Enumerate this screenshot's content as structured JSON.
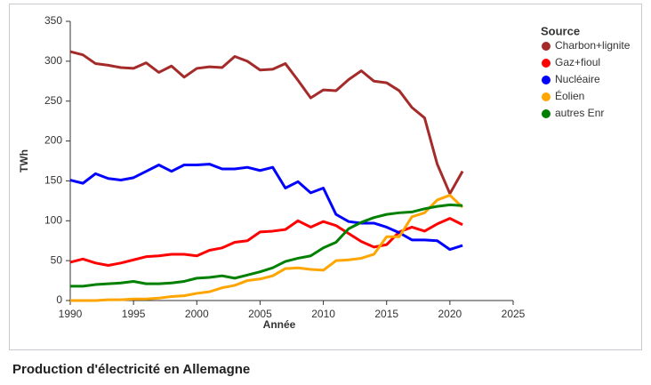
{
  "chart_data": {
    "type": "line",
    "caption": "Production d'électricité en Allemagne",
    "xlabel": "Année",
    "ylabel": "TWh",
    "legend_title": "Source",
    "legend": "top-right",
    "x": [
      1990,
      1991,
      1992,
      1993,
      1994,
      1995,
      1996,
      1997,
      1998,
      1999,
      2000,
      2001,
      2002,
      2003,
      2004,
      2005,
      2006,
      2007,
      2008,
      2009,
      2010,
      2011,
      2012,
      2013,
      2014,
      2015,
      2016,
      2017,
      2018,
      2019,
      2020,
      2021
    ],
    "xlim": [
      1990,
      2025
    ],
    "xticks": [
      1990,
      1995,
      2000,
      2005,
      2010,
      2015,
      2020,
      2025
    ],
    "ylim": [
      0,
      350
    ],
    "yticks": [
      0,
      50,
      100,
      150,
      200,
      250,
      300,
      350
    ],
    "series": [
      {
        "name": "Charbon+lignite",
        "color": "#a52a2a",
        "values": [
          312,
          308,
          297,
          295,
          292,
          291,
          298,
          286,
          294,
          280,
          291,
          293,
          292,
          306,
          300,
          289,
          290,
          297,
          276,
          254,
          264,
          263,
          277,
          288,
          275,
          273,
          263,
          242,
          229,
          171,
          134,
          162
        ]
      },
      {
        "name": "Gaz+fioul",
        "color": "#ff0000",
        "values": [
          48,
          52,
          47,
          44,
          47,
          51,
          55,
          56,
          58,
          58,
          56,
          63,
          66,
          73,
          75,
          86,
          87,
          89,
          100,
          92,
          99,
          94,
          84,
          74,
          67,
          70,
          86,
          92,
          87,
          96,
          103,
          95
        ]
      },
      {
        "name": "Nucléaire",
        "color": "#0000ff",
        "values": [
          151,
          147,
          159,
          153,
          151,
          154,
          162,
          170,
          162,
          170,
          170,
          171,
          165,
          165,
          167,
          163,
          167,
          141,
          149,
          135,
          141,
          108,
          99,
          97,
          97,
          92,
          85,
          76,
          76,
          75,
          64,
          69
        ]
      },
      {
        "name": "Éolien",
        "color": "#ffa500",
        "values": [
          0,
          0,
          0,
          1,
          1,
          2,
          2,
          3,
          5,
          6,
          9,
          11,
          16,
          19,
          25,
          27,
          31,
          40,
          41,
          39,
          38,
          50,
          51,
          53,
          58,
          80,
          80,
          105,
          110,
          126,
          132,
          117
        ]
      },
      {
        "name": "autres Enr",
        "color": "#008000",
        "values": [
          18,
          18,
          20,
          21,
          22,
          24,
          21,
          21,
          22,
          24,
          28,
          29,
          31,
          28,
          32,
          36,
          41,
          49,
          53,
          56,
          66,
          73,
          90,
          98,
          104,
          108,
          110,
          111,
          115,
          118,
          120,
          119
        ]
      }
    ]
  }
}
